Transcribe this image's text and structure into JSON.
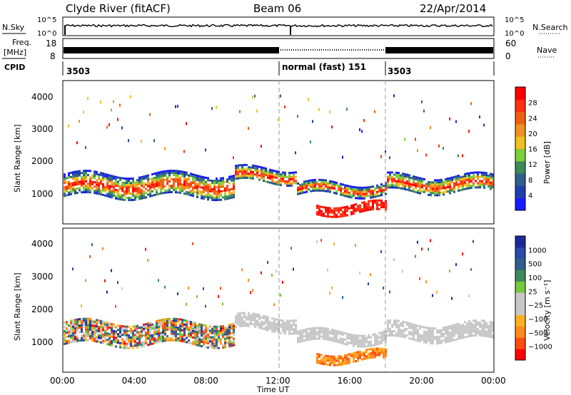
{
  "header": {
    "station": "Clyde River (fitACF)",
    "beam": "Beam 06",
    "date": "22/Apr/2014"
  },
  "strips": {
    "nsky_label": "N.Sky",
    "nsearch_label": "N.Search",
    "nsky_ticks": [
      "10^5",
      "10^0"
    ],
    "nsearch_ticks": [
      "10^5",
      "10^0"
    ],
    "freq_label_top": "Freq.",
    "freq_label_bot": "[MHz]",
    "freq_ticks": [
      "18",
      "8"
    ],
    "nave_label": "Nave",
    "nave_ticks": [
      "60",
      "0"
    ],
    "cpid_label": "CPID",
    "cpid_segments": [
      "3503",
      "normal (fast) 151",
      "3503"
    ]
  },
  "colors": {
    "power": [
      "#1a1aff",
      "#1f3fae",
      "#2f5f8a",
      "#3c8a5a",
      "#7ccf3a",
      "#f0c020",
      "#f09020",
      "#f06010",
      "#ff3010",
      "#ff0000"
    ],
    "velocity": [
      "#ff0000",
      "#ff4d10",
      "#ff8a1a",
      "#ffb020",
      "#c8c8c8",
      "#c8c8c8",
      "#74c83c",
      "#3c8a5a",
      "#2f5f8a",
      "#2a4aa8",
      "#1a2a9a"
    ]
  },
  "chart_data": [
    {
      "type": "heatmap",
      "panel": "power",
      "xlabel": "",
      "ylabel": "Slant Range [km]",
      "x_ticks": [
        "00:00",
        "04:00",
        "08:00",
        "12:00",
        "16:00",
        "20:00",
        "00:00"
      ],
      "y_ticks": [
        "1000",
        "2000",
        "3000",
        "4000"
      ],
      "xlim_hours": [
        0,
        24
      ],
      "ylim_km": [
        200,
        4500
      ],
      "colorbar_label": "Power [dB]",
      "colorbar_ticks": [
        "4",
        "8",
        "12",
        "16",
        "20",
        "24",
        "28"
      ],
      "bands_km": [
        {
          "from_h": 0,
          "to_h": 9.5,
          "center_km": 1350,
          "width_km": 700
        },
        {
          "from_h": 9.5,
          "to_h": 13,
          "center_km": 1650,
          "width_km": 450
        },
        {
          "from_h": 13,
          "to_h": 18,
          "center_km": 1250,
          "width_km": 350
        },
        {
          "from_h": 18,
          "to_h": 24,
          "center_km": 1400,
          "width_km": 500
        },
        {
          "from_h": 14,
          "to_h": 18,
          "center_km": 650,
          "width_km": 300
        }
      ]
    },
    {
      "type": "heatmap",
      "panel": "velocity",
      "xlabel": "Time UT",
      "ylabel": "Slant Range [km]",
      "x_ticks": [
        "00:00",
        "04:00",
        "08:00",
        "12:00",
        "16:00",
        "20:00",
        "00:00"
      ],
      "y_ticks": [
        "1000",
        "2000",
        "3000",
        "4000"
      ],
      "xlim_hours": [
        0,
        24
      ],
      "ylim_km": [
        200,
        4500
      ],
      "colorbar_label": "Velocity [m s⁻¹]",
      "colorbar_ticks": [
        "1000",
        "500",
        "100",
        "25",
        "−25",
        "−100",
        "−500",
        "−1000"
      ],
      "bands_km": [
        {
          "from_h": 0,
          "to_h": 9.5,
          "center_km": 1350,
          "width_km": 700
        },
        {
          "from_h": 9.5,
          "to_h": 13,
          "center_km": 1650,
          "width_km": 450
        },
        {
          "from_h": 13,
          "to_h": 18,
          "center_km": 1250,
          "width_km": 350
        },
        {
          "from_h": 18,
          "to_h": 24,
          "center_km": 1400,
          "width_km": 500
        },
        {
          "from_h": 14,
          "to_h": 18,
          "center_km": 650,
          "width_km": 300
        }
      ]
    }
  ]
}
